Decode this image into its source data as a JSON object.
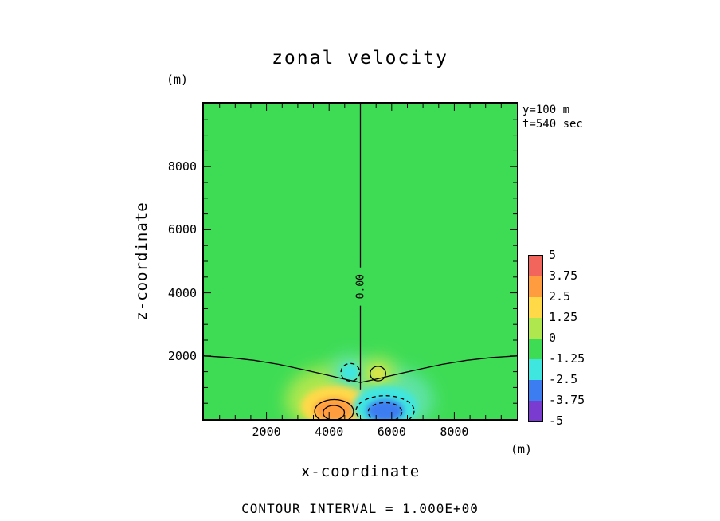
{
  "chart_data": {
    "type": "heatmap",
    "subtype": "filled-contour-plot",
    "title": "zonal velocity",
    "xlabel": "x-coordinate",
    "ylabel": "z-coordinate",
    "x_unit": "(m)",
    "y_unit": "(m)",
    "xlim": [
      0,
      10000
    ],
    "ylim": [
      0,
      10000
    ],
    "xticks_labeled": [
      2000,
      4000,
      6000,
      8000
    ],
    "yticks_labeled": [
      2000,
      4000,
      6000,
      8000
    ],
    "tick_minor_step": 500,
    "tick_major_step": 2000,
    "slice_annotations": [
      "y=100 m",
      "t=540 sec"
    ],
    "contour_interval": 1.0,
    "contour_interval_label": "CONTOUR INTERVAL = 1.000E+00",
    "zero_contour_label": "0.00",
    "zero_label": {
      "x": 5000,
      "z": 4200
    },
    "background_value_range": [
      -1.25,
      0
    ],
    "background_color": "#3EDC55",
    "colorbar": {
      "levels": [
        5,
        3.75,
        2.5,
        1.25,
        0,
        -1.25,
        -2.5,
        -3.75,
        -5
      ],
      "colors_top_to_bottom": [
        "#F2655C",
        "#FF9C3F",
        "#FFD948",
        "#AEE74E",
        "#3EDC55",
        "#3FE6E0",
        "#3C7DF2",
        "#7A3BD0"
      ]
    },
    "field_features": {
      "fills": [
        {
          "name": "positive-anomaly-halo",
          "cx": 4200,
          "cz": 600,
          "rx": 1600,
          "rz": 1100,
          "color": "#AEE74E",
          "soft": 2
        },
        {
          "name": "negative-anomaly-halo",
          "cx": 5850,
          "cz": 600,
          "rx": 1500,
          "rz": 1050,
          "color": "#5FE3A5",
          "soft": 2
        },
        {
          "name": "upper-negative-halo",
          "cx": 4680,
          "cz": 1480,
          "rx": 640,
          "rz": 560,
          "color": "#5FE3A5",
          "soft": 2
        },
        {
          "name": "upper-positive-halo",
          "cx": 5560,
          "cz": 1440,
          "rx": 600,
          "rz": 520,
          "color": "#AEE74E",
          "soft": 2
        },
        {
          "name": "positive-anomaly-yellow",
          "cx": 4200,
          "cz": 400,
          "rx": 1100,
          "rz": 660,
          "color": "#FFD948",
          "soft": 1
        },
        {
          "name": "positive-anomaly-core",
          "cx": 4160,
          "cz": 280,
          "rx": 650,
          "rz": 390,
          "color": "#FF9C3F",
          "soft": 1
        },
        {
          "name": "negative-anomaly-cyan",
          "cx": 5800,
          "cz": 400,
          "rx": 1020,
          "rz": 650,
          "color": "#3FE6E0",
          "soft": 1
        },
        {
          "name": "negative-anomaly-core",
          "cx": 5790,
          "cz": 260,
          "rx": 590,
          "rz": 360,
          "color": "#3C7DF2",
          "soft": 1
        },
        {
          "name": "upper-negative-cell",
          "cx": 4680,
          "cz": 1480,
          "rx": 300,
          "rz": 280,
          "color": "#3FE6E0",
          "soft": 1
        },
        {
          "name": "upper-positive-cell",
          "cx": 5560,
          "cz": 1440,
          "rx": 250,
          "rz": 230,
          "color": "#D9E44A",
          "soft": 1
        }
      ],
      "contours": [
        {
          "name": "zero-contour-curve",
          "kind": "polyline",
          "style": "solid",
          "points": [
            [
              0,
              2000
            ],
            [
              800,
              1950
            ],
            [
              1600,
              1860
            ],
            [
              2400,
              1730
            ],
            [
              3200,
              1560
            ],
            [
              4000,
              1380
            ],
            [
              4600,
              1240
            ],
            [
              5000,
              1160
            ],
            [
              5400,
              1240
            ],
            [
              6000,
              1380
            ],
            [
              6800,
              1560
            ],
            [
              7600,
              1730
            ],
            [
              8400,
              1860
            ],
            [
              9200,
              1950
            ],
            [
              10000,
              2000
            ]
          ]
        },
        {
          "name": "zero-contour-vertical",
          "kind": "polyline",
          "style": "solid",
          "points": [
            [
              5000,
              10000
            ],
            [
              5000,
              940
            ]
          ]
        },
        {
          "name": "positive-contour-outer",
          "kind": "ellipse",
          "style": "solid",
          "cx": 4160,
          "cz": 240,
          "rx": 620,
          "rz": 380
        },
        {
          "name": "positive-contour-inner",
          "kind": "ellipse",
          "style": "solid",
          "cx": 4150,
          "cz": 200,
          "rx": 340,
          "rz": 230
        },
        {
          "name": "negative-contour-outer",
          "kind": "ellipse",
          "style": "dashed",
          "cx": 5790,
          "cz": 260,
          "rx": 930,
          "rz": 480
        },
        {
          "name": "negative-contour-inner",
          "kind": "ellipse",
          "style": "dashed",
          "cx": 5785,
          "cz": 220,
          "rx": 540,
          "rz": 300
        },
        {
          "name": "upper-negative-contour",
          "kind": "ellipse",
          "style": "dashed",
          "cx": 4680,
          "cz": 1480,
          "rx": 300,
          "rz": 280
        },
        {
          "name": "upper-positive-contour",
          "kind": "ellipse",
          "style": "solid",
          "cx": 5560,
          "cz": 1440,
          "rx": 250,
          "rz": 230
        }
      ]
    }
  }
}
